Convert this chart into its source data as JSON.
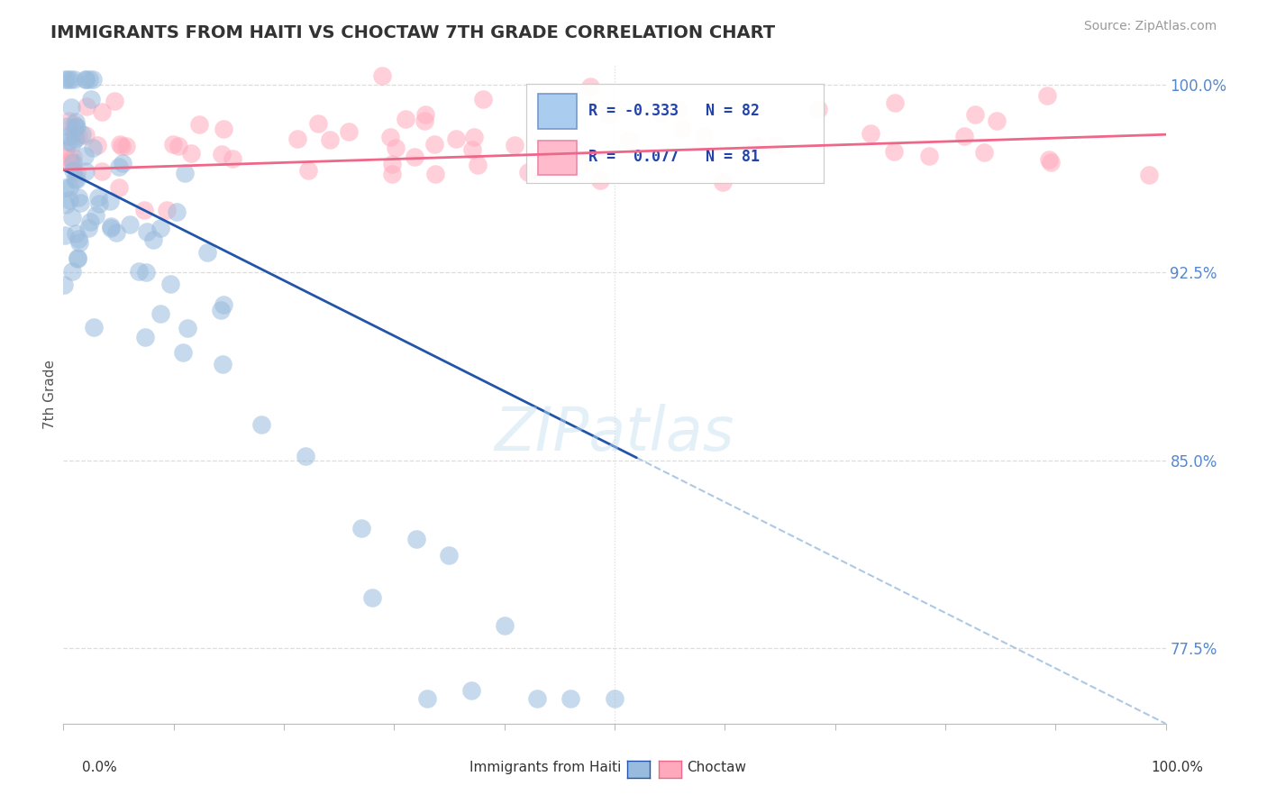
{
  "title": "IMMIGRANTS FROM HAITI VS CHOCTAW 7TH GRADE CORRELATION CHART",
  "source": "Source: ZipAtlas.com",
  "ylabel": "7th Grade",
  "y_ticks": [
    0.775,
    0.85,
    0.925,
    1.0
  ],
  "y_tick_labels": [
    "77.5%",
    "85.0%",
    "92.5%",
    "100.0%"
  ],
  "xlim": [
    0.0,
    1.0
  ],
  "ylim": [
    0.745,
    1.008
  ],
  "blue_color": "#99bbdd",
  "pink_color": "#ffaabc",
  "blue_line_color": "#2255aa",
  "pink_line_color": "#ee6688",
  "watermark": "ZIPatlas",
  "legend_r1_val": "-0.333",
  "legend_r2_val": "0.077",
  "legend_n1": "82",
  "legend_n2": "81",
  "grid_color": "#dddddd",
  "tick_color": "#aaaaaa",
  "ytick_color": "#5588cc"
}
